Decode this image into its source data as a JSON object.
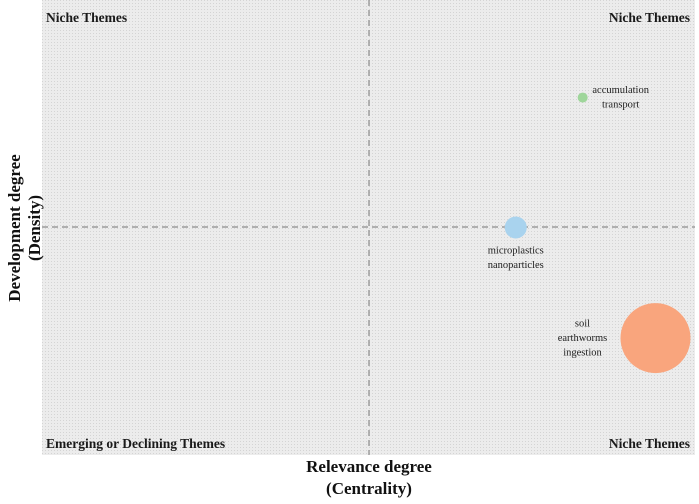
{
  "chart_data": {
    "type": "scatter",
    "xlabel": [
      "Relevance degree",
      "(Centrality)"
    ],
    "ylabel": [
      "Development degree",
      "(Density)"
    ],
    "grid": "on",
    "quadrants": {
      "top_left": "Niche Themes",
      "top_right": "Niche Themes",
      "bottom_left": "Emerging or Declining Themes",
      "bottom_right": "Niche Themes"
    },
    "points": [
      {
        "labels": [
          "accumulation",
          "transport"
        ],
        "x": 0.656,
        "y": 0.571,
        "size": 1,
        "color": "#9fd69b"
      },
      {
        "labels": [
          "microplastics",
          "nanoparticles"
        ],
        "x": 0.451,
        "y": 0.0,
        "size": 2.2,
        "color": "#a9d3ee"
      },
      {
        "labels": [
          "soil",
          "earthworms",
          "ingestion"
        ],
        "x": 0.879,
        "y": -0.486,
        "size": 7,
        "color": "#f9a57d"
      }
    ]
  }
}
